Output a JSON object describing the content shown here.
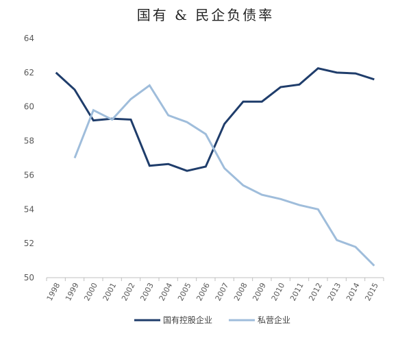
{
  "chart_data": {
    "type": "line",
    "title": "国有 & 民企负债率",
    "xlabel": "",
    "ylabel": "",
    "x": [
      "1998",
      "1999",
      "2000",
      "2001",
      "2002",
      "2003",
      "2004",
      "2005",
      "2006",
      "2007",
      "2008",
      "2009",
      "2010",
      "2011",
      "2012",
      "2013",
      "2014",
      "2015"
    ],
    "ylim": [
      50,
      64
    ],
    "yticks": [
      50,
      52,
      54,
      56,
      58,
      60,
      62,
      64
    ],
    "grid": false,
    "legend_position": "bottom",
    "series": [
      {
        "name": "国有控股企业",
        "color": "#1f3d6b",
        "values": [
          62.0,
          61.0,
          59.2,
          59.3,
          59.25,
          56.55,
          56.65,
          56.25,
          56.5,
          59.0,
          60.3,
          60.3,
          61.15,
          61.3,
          62.25,
          62.0,
          61.95,
          61.6
        ]
      },
      {
        "name": "私营企业",
        "color": "#9fbddb",
        "values": [
          null,
          57.0,
          59.8,
          59.25,
          60.45,
          61.25,
          59.5,
          59.1,
          58.4,
          56.4,
          55.4,
          54.85,
          54.6,
          54.25,
          54.0,
          52.2,
          51.8,
          50.7
        ]
      }
    ]
  }
}
